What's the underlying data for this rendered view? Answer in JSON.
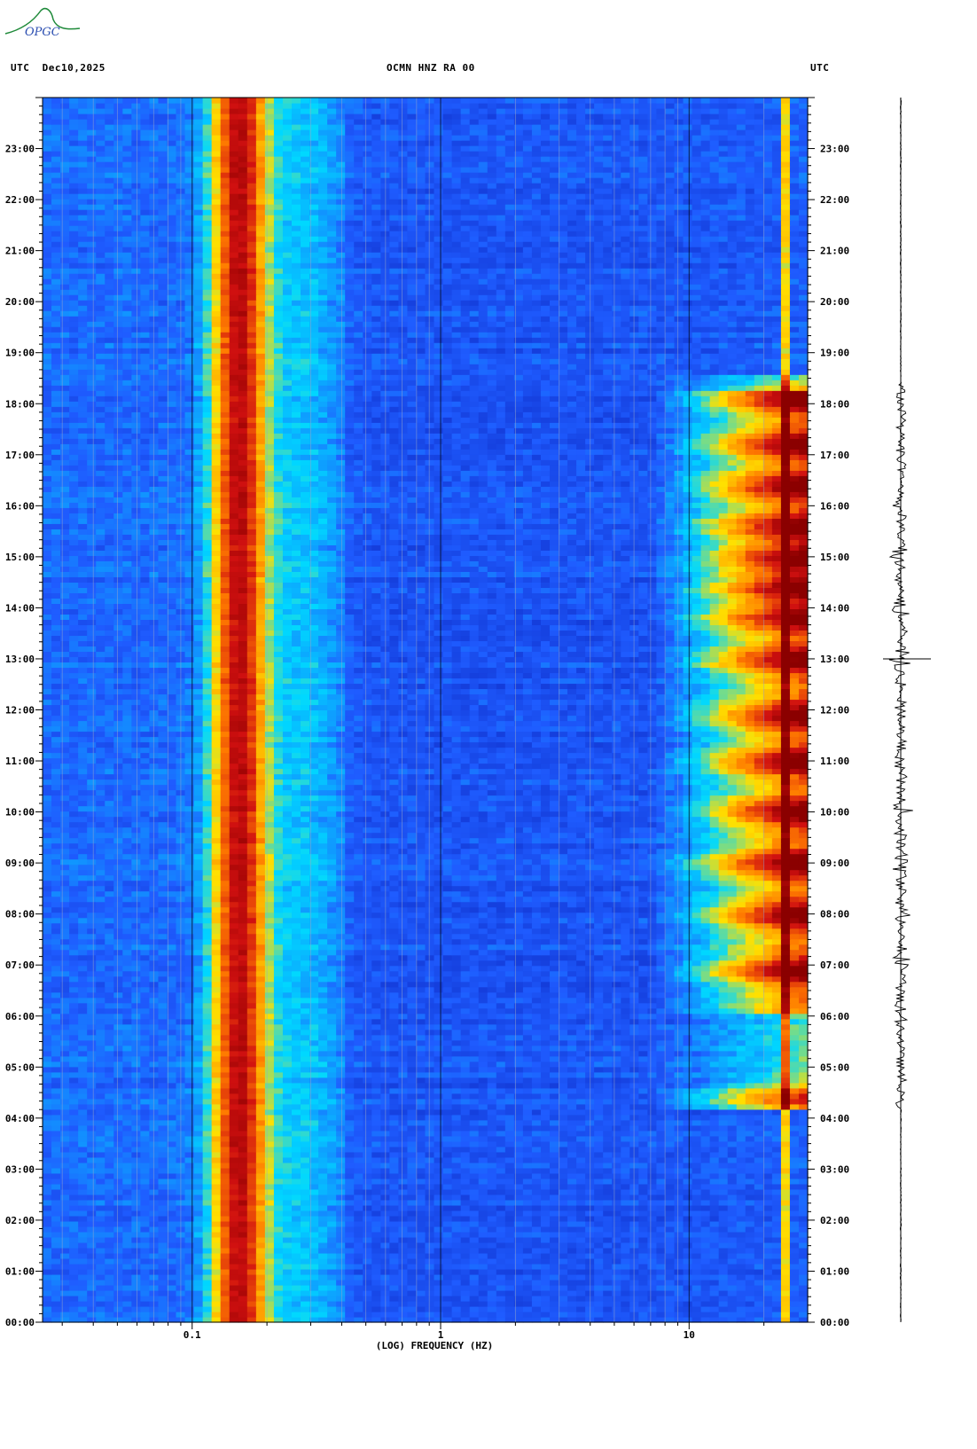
{
  "header": {
    "logo_text": "OPGC",
    "left_label": "UTC  Dec10,2025",
    "center_label": "OCMN HNZ RA 00",
    "right_label": "UTC"
  },
  "colors": {
    "background": "#ffffff",
    "low": "#0a1fb8",
    "mid": "#00d8ff",
    "high": "#ffe000",
    "peak": "#8b0000",
    "logo": "#1f8a3a"
  },
  "chart_data": {
    "type": "heatmap",
    "title": "OCMN HNZ RA 00",
    "xlabel": "(LOG) FREQUENCY (HZ)",
    "ylabel": "UTC",
    "x_scale": "log",
    "xlim": [
      0.025,
      30
    ],
    "ylim": [
      "00:00",
      "24:00"
    ],
    "x_ticks": [
      {
        "value": 0.1,
        "label": "0.1"
      },
      {
        "value": 1,
        "label": "1"
      },
      {
        "value": 10,
        "label": "10"
      }
    ],
    "y_ticks": [
      "00:00",
      "01:00",
      "02:00",
      "03:00",
      "04:00",
      "05:00",
      "06:00",
      "07:00",
      "08:00",
      "09:00",
      "10:00",
      "11:00",
      "12:00",
      "13:00",
      "14:00",
      "15:00",
      "16:00",
      "17:00",
      "18:00",
      "19:00",
      "20:00",
      "21:00",
      "22:00",
      "23:00"
    ],
    "colorscale": [
      "#0a1fb8",
      "#1f5cff",
      "#00d8ff",
      "#ffe000",
      "#ff7a00",
      "#d01010",
      "#8b0000"
    ],
    "features": [
      {
        "name": "microseism band",
        "freq_range_hz": [
          0.12,
          0.2
        ],
        "time_range": [
          "00:00",
          "24:00"
        ],
        "level": "high"
      },
      {
        "name": "cultural noise band",
        "freq_range_hz": [
          10,
          30
        ],
        "time_range": [
          "06:00",
          "18:30"
        ],
        "level": "high"
      },
      {
        "name": "narrow line",
        "freq_range_hz": [
          24,
          24.5
        ],
        "time_range": [
          "00:00",
          "24:00"
        ],
        "level": "medium"
      }
    ],
    "grid": true
  }
}
